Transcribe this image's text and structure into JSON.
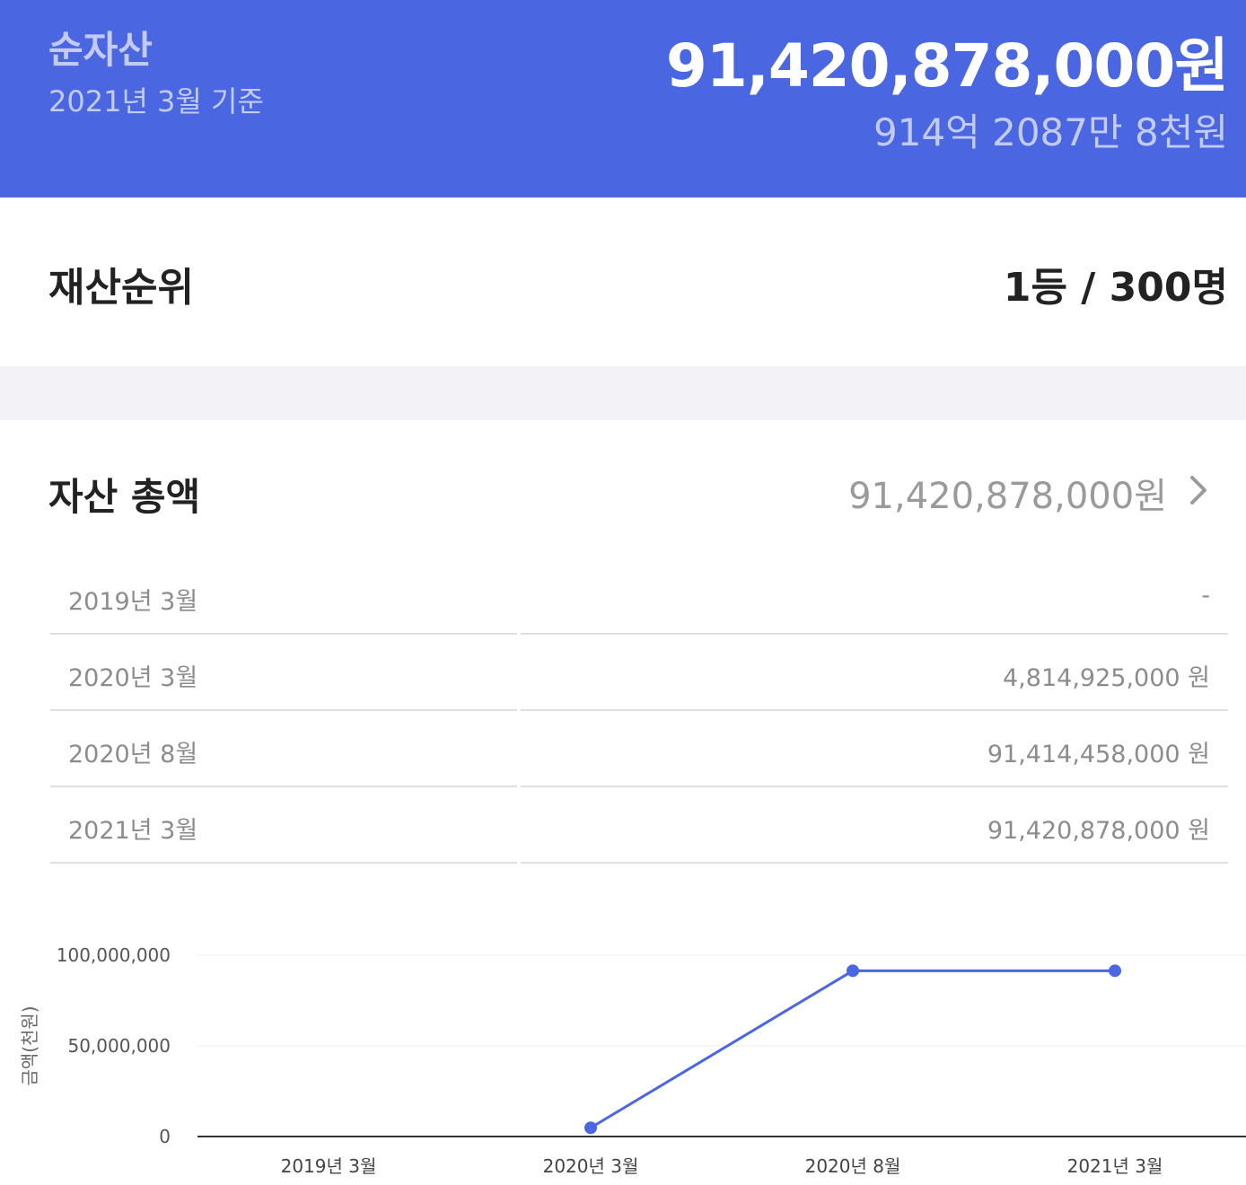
{
  "header": {
    "label": "순자산",
    "subtitle": "2021년 3월 기준",
    "amount": "91,420,878,000원",
    "amount_korean": "914억 2087만 8천원",
    "bg_color": "#4a66e0"
  },
  "rank": {
    "title": "재산순위",
    "value": "1등 / 300명"
  },
  "assets": {
    "title": "자산 총액",
    "total": "91,420,878,000원",
    "chevron_icon": "chevron-right-icon",
    "history": [
      {
        "date": "2019년 3월",
        "amount": "-"
      },
      {
        "date": "2020년 3월",
        "amount": "4,814,925,000 원"
      },
      {
        "date": "2020년 8월",
        "amount": "91,414,458,000 원"
      },
      {
        "date": "2021년 3월",
        "amount": "91,420,878,000 원"
      }
    ]
  },
  "chart_data": {
    "type": "line",
    "categories": [
      "2019년 3월",
      "2020년 3월",
      "2020년 8월",
      "2021년 3월"
    ],
    "series": [
      {
        "values": [
          null,
          4814925,
          91414458,
          91420878
        ]
      }
    ],
    "ylabel": "금액(천원)",
    "ylim": [
      0,
      100000000
    ],
    "yticks": [
      0,
      50000000,
      100000000
    ],
    "ytick_labels": [
      "0",
      "50,000,000",
      "100,000,000"
    ],
    "grid": true,
    "line_color": "#4a66e0"
  }
}
